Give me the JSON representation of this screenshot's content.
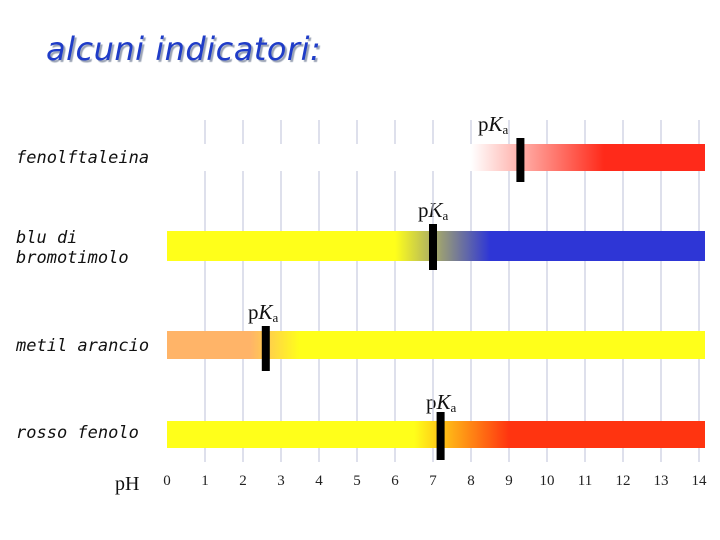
{
  "title": "alcuni indicatori:",
  "ph_label": "pH",
  "pka_text": {
    "p": "p",
    "K": "K",
    "sub": "a"
  },
  "axis": {
    "min": 0,
    "max": 14,
    "ticks": [
      "0",
      "1",
      "2",
      "3",
      "4",
      "5",
      "6",
      "7",
      "8",
      "9",
      "10",
      "11",
      "12",
      "13",
      "14"
    ]
  },
  "indicators": [
    {
      "name": "fenolftaleina",
      "pka": 9.3,
      "transition": [
        8.0,
        11.5
      ],
      "acid_color": "#ffffff",
      "base_color": "#ff2a1a",
      "bar_start": 0
    },
    {
      "name": "blu di bromotimolo",
      "pka": 7.0,
      "transition": [
        6.0,
        8.5
      ],
      "acid_color": "#ffff1a",
      "base_color": "#2e36d6",
      "bar_start": 0
    },
    {
      "name": "metil arancio",
      "pka": 2.6,
      "transition": [
        2.2,
        3.5
      ],
      "acid_color": "#ffb468",
      "base_color": "#ffff1a",
      "bar_start": 0
    },
    {
      "name": "rosso fenolo",
      "pka": 7.2,
      "transition": [
        6.5,
        9.0
      ],
      "acid_color": "#ffff1a",
      "base_color": "#ff3410",
      "bar_start": 0
    }
  ],
  "colors": {
    "title": "#1f3cc8",
    "marker": "#000000",
    "grid": "#c9cce0"
  }
}
